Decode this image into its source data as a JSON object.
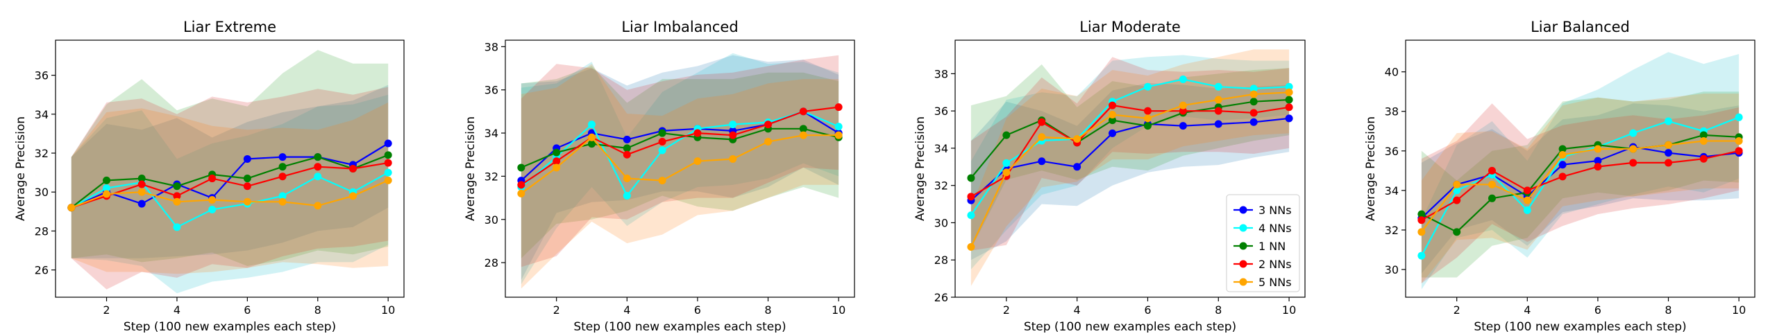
{
  "chart_data": [
    {
      "type": "line",
      "title": "Liar Extreme",
      "xlabel": "Step (100 new examples each step)",
      "ylabel": "Average Precision",
      "xlim": [
        0.55,
        10.45
      ],
      "ylim": [
        24.6,
        37.8
      ],
      "xticks": [
        2,
        4,
        6,
        8,
        10
      ],
      "yticks": [
        26,
        28,
        30,
        32,
        34,
        36
      ],
      "x": [
        1,
        2,
        3,
        4,
        5,
        6,
        7,
        8,
        9,
        10
      ],
      "series": [
        {
          "name": "3 NNs",
          "color": "#0000ff",
          "fill": "#1f77b4",
          "values": [
            29.2,
            30.0,
            29.4,
            30.4,
            29.7,
            31.7,
            31.8,
            31.8,
            31.4,
            32.5
          ],
          "lower": [
            26.6,
            26.6,
            26.6,
            26.7,
            26.8,
            27.0,
            27.4,
            28.0,
            28.2,
            29.2
          ],
          "upper": [
            31.8,
            33.5,
            33.2,
            33.8,
            32.8,
            33.6,
            34.1,
            34.4,
            34.7,
            35.5
          ]
        },
        {
          "name": "4 NNs",
          "color": "#00ffff",
          "fill": "#17becf",
          "values": [
            29.2,
            30.2,
            30.5,
            28.2,
            29.1,
            29.4,
            29.8,
            30.8,
            30.0,
            31.0
          ],
          "lower": [
            26.6,
            26.5,
            26.2,
            24.8,
            25.4,
            25.6,
            25.9,
            26.4,
            26.4,
            27.3
          ],
          "upper": [
            31.8,
            33.8,
            34.2,
            31.7,
            32.5,
            32.9,
            33.5,
            34.4,
            34.5,
            35.0
          ]
        },
        {
          "name": "1 NN",
          "color": "#008000",
          "fill": "#2ca02c",
          "values": [
            29.2,
            30.6,
            30.7,
            30.3,
            30.9,
            30.7,
            31.3,
            31.8,
            31.2,
            31.9
          ],
          "lower": [
            26.6,
            26.8,
            26.4,
            26.6,
            26.9,
            26.2,
            26.5,
            27.0,
            26.8,
            27.2
          ],
          "upper": [
            31.8,
            34.5,
            35.8,
            34.2,
            34.8,
            34.4,
            36.1,
            37.3,
            36.6,
            36.6
          ]
        },
        {
          "name": "2 NNs",
          "color": "#ff0000",
          "fill": "#d62728",
          "values": [
            29.2,
            29.8,
            30.4,
            29.8,
            30.7,
            30.3,
            30.8,
            31.3,
            31.2,
            31.5
          ],
          "lower": [
            26.6,
            25.0,
            25.9,
            25.6,
            26.3,
            26.1,
            26.7,
            27.1,
            27.2,
            27.5
          ],
          "upper": [
            31.8,
            34.6,
            34.8,
            34.0,
            34.9,
            34.6,
            34.9,
            35.3,
            35.0,
            35.4
          ]
        },
        {
          "name": "5 NNs",
          "color": "#ffa500",
          "fill": "#ff7f0e",
          "values": [
            29.2,
            29.9,
            30.0,
            29.5,
            29.6,
            29.5,
            29.5,
            29.3,
            29.8,
            30.6
          ],
          "lower": [
            26.6,
            25.9,
            25.9,
            25.8,
            25.9,
            26.1,
            26.4,
            26.3,
            26.1,
            26.2
          ],
          "upper": [
            31.8,
            34.1,
            34.3,
            33.9,
            33.4,
            33.2,
            33.3,
            33.2,
            33.7,
            34.6
          ]
        }
      ]
    },
    {
      "type": "line",
      "title": "Liar Imbalanced",
      "xlabel": "Step (100 new examples each step)",
      "ylabel": "Average Precision",
      "xlim": [
        0.55,
        10.45
      ],
      "ylim": [
        26.4,
        38.3
      ],
      "xticks": [
        2,
        4,
        6,
        8,
        10
      ],
      "yticks": [
        28,
        30,
        32,
        34,
        36,
        38
      ],
      "x": [
        1,
        2,
        3,
        4,
        5,
        6,
        7,
        8,
        9,
        10
      ],
      "series": [
        {
          "name": "3 NNs",
          "color": "#0000ff",
          "fill": "#1f77b4",
          "values": [
            31.8,
            33.3,
            34.0,
            33.7,
            34.1,
            34.2,
            34.1,
            34.4,
            35.0,
            34.0
          ],
          "lower": [
            27.2,
            30.3,
            30.8,
            30.9,
            31.3,
            31.3,
            31.0,
            31.5,
            32.4,
            31.6
          ],
          "upper": [
            36.3,
            36.4,
            37.0,
            36.2,
            36.8,
            37.1,
            37.6,
            37.3,
            37.4,
            36.7
          ]
        },
        {
          "name": "4 NNs",
          "color": "#00ffff",
          "fill": "#17becf",
          "values": [
            31.5,
            32.9,
            34.4,
            31.1,
            33.2,
            34.2,
            34.4,
            34.5,
            35.0,
            34.3
          ],
          "lower": [
            27.0,
            29.6,
            31.5,
            29.7,
            30.8,
            31.5,
            31.6,
            31.9,
            32.6,
            32.0
          ],
          "upper": [
            36.1,
            36.3,
            37.3,
            33.8,
            35.9,
            36.8,
            37.7,
            37.2,
            37.3,
            36.8
          ]
        },
        {
          "name": "1 NN",
          "color": "#008000",
          "fill": "#2ca02c",
          "values": [
            32.4,
            33.1,
            33.5,
            33.3,
            34.0,
            33.8,
            33.7,
            34.2,
            34.2,
            33.8
          ],
          "lower": [
            28.2,
            29.8,
            30.0,
            30.4,
            31.1,
            30.6,
            30.4,
            31.0,
            31.5,
            31.0
          ],
          "upper": [
            36.3,
            36.5,
            37.1,
            35.4,
            36.5,
            36.5,
            36.5,
            36.8,
            36.8,
            36.4
          ]
        },
        {
          "name": "2 NNs",
          "color": "#ff0000",
          "fill": "#d62728",
          "values": [
            31.6,
            32.7,
            33.8,
            33.0,
            33.6,
            34.0,
            33.9,
            34.4,
            35.0,
            35.2
          ],
          "lower": [
            27.8,
            28.3,
            30.1,
            30.0,
            30.8,
            31.0,
            31.0,
            31.7,
            32.4,
            32.3
          ],
          "upper": [
            35.6,
            37.2,
            37.0,
            36.0,
            36.4,
            36.7,
            36.8,
            37.1,
            37.4,
            37.6
          ]
        },
        {
          "name": "5 NNs",
          "color": "#ffa500",
          "fill": "#ff7f0e",
          "values": [
            31.2,
            32.4,
            33.8,
            31.9,
            31.8,
            32.7,
            32.8,
            33.6,
            33.9,
            33.9
          ],
          "lower": [
            26.8,
            28.4,
            29.9,
            28.9,
            29.3,
            30.2,
            30.4,
            31.0,
            31.6,
            31.6
          ],
          "upper": [
            35.8,
            36.1,
            37.2,
            34.9,
            34.8,
            35.6,
            35.8,
            36.3,
            36.5,
            36.5
          ]
        }
      ]
    },
    {
      "type": "line",
      "title": "Liar Moderate",
      "xlabel": "Step (100 new examples each step)",
      "ylabel": "Average Precision",
      "xlim": [
        0.55,
        10.45
      ],
      "ylim": [
        26.0,
        39.8
      ],
      "xticks": [
        2,
        4,
        6,
        8,
        10
      ],
      "yticks": [
        26,
        28,
        30,
        32,
        34,
        36,
        38
      ],
      "x": [
        1,
        2,
        3,
        4,
        5,
        6,
        7,
        8,
        9,
        10
      ],
      "series": [
        {
          "name": "3 NNs",
          "color": "#0000ff",
          "fill": "#1f77b4",
          "values": [
            31.2,
            32.9,
            33.3,
            33.0,
            34.8,
            35.3,
            35.2,
            35.3,
            35.4,
            35.6
          ],
          "lower": [
            28.0,
            29.0,
            31.0,
            30.9,
            32.0,
            32.7,
            33.0,
            33.1,
            33.5,
            33.8
          ],
          "upper": [
            34.4,
            36.5,
            36.0,
            35.2,
            37.1,
            37.5,
            37.4,
            37.2,
            37.3,
            37.4
          ]
        },
        {
          "name": "4 NNs",
          "color": "#00ffff",
          "fill": "#17becf",
          "values": [
            30.4,
            33.2,
            34.4,
            34.5,
            36.5,
            37.3,
            37.7,
            37.3,
            37.2,
            37.3
          ],
          "lower": [
            27.5,
            29.6,
            31.5,
            32.0,
            34.0,
            35.2,
            35.7,
            35.5,
            35.6,
            35.8
          ],
          "upper": [
            33.3,
            36.6,
            37.0,
            36.8,
            38.7,
            38.9,
            39.0,
            38.8,
            38.7,
            38.7
          ]
        },
        {
          "name": "1 NN",
          "color": "#008000",
          "fill": "#2ca02c",
          "values": [
            32.4,
            34.7,
            35.5,
            34.3,
            35.5,
            35.2,
            35.9,
            36.2,
            36.5,
            36.6
          ],
          "lower": [
            28.6,
            32.3,
            32.8,
            32.3,
            33.0,
            32.8,
            33.6,
            34.0,
            34.4,
            34.7
          ],
          "upper": [
            36.3,
            36.8,
            38.5,
            36.2,
            37.6,
            37.3,
            37.8,
            38.0,
            38.2,
            38.3
          ]
        },
        {
          "name": "2 NNs",
          "color": "#ff0000",
          "fill": "#d62728",
          "values": [
            31.4,
            32.5,
            35.4,
            34.3,
            36.3,
            36.0,
            36.0,
            36.0,
            35.9,
            36.2
          ],
          "lower": [
            28.5,
            28.8,
            32.4,
            32.0,
            33.8,
            33.7,
            33.8,
            33.8,
            33.7,
            34.0
          ],
          "upper": [
            34.4,
            35.7,
            37.8,
            36.4,
            38.9,
            38.2,
            38.1,
            38.2,
            38.1,
            38.3
          ]
        },
        {
          "name": "5 NNs",
          "color": "#ffa500",
          "fill": "#ff7f0e",
          "values": [
            28.7,
            32.7,
            34.6,
            34.5,
            35.8,
            35.6,
            36.3,
            36.6,
            36.9,
            37.0
          ],
          "lower": [
            26.6,
            29.8,
            31.9,
            32.2,
            33.4,
            33.4,
            34.1,
            34.4,
            34.7,
            34.8
          ],
          "upper": [
            30.8,
            35.6,
            37.2,
            36.8,
            38.2,
            37.9,
            38.5,
            38.9,
            39.3,
            39.3
          ]
        }
      ]
    },
    {
      "type": "line",
      "title": "Liar Balanced",
      "xlabel": "Step (100 new examples each step)",
      "ylabel": "Average Precision",
      "xlim": [
        0.55,
        10.45
      ],
      "ylim": [
        28.6,
        41.6
      ],
      "xticks": [
        2,
        4,
        6,
        8,
        10
      ],
      "yticks": [
        30,
        32,
        34,
        36,
        38,
        40
      ],
      "x": [
        1,
        2,
        3,
        4,
        5,
        6,
        7,
        8,
        9,
        10
      ],
      "series": [
        {
          "name": "3 NNs",
          "color": "#0000ff",
          "fill": "#1f77b4",
          "values": [
            32.6,
            34.3,
            34.8,
            33.7,
            35.3,
            35.5,
            36.2,
            35.9,
            35.7,
            35.9
          ],
          "lower": [
            29.8,
            32.0,
            32.5,
            31.2,
            32.9,
            33.2,
            33.6,
            33.5,
            33.5,
            33.6
          ],
          "upper": [
            35.4,
            36.4,
            37.1,
            36.0,
            37.6,
            37.8,
            38.4,
            38.3,
            38.0,
            38.3
          ]
        },
        {
          "name": "4 NNs",
          "color": "#00ffff",
          "fill": "#17becf",
          "values": [
            30.7,
            34.0,
            34.8,
            33.0,
            35.7,
            36.2,
            36.9,
            37.5,
            37.0,
            37.7
          ],
          "lower": [
            29.0,
            31.6,
            32.0,
            30.6,
            32.8,
            33.3,
            33.8,
            34.2,
            33.9,
            34.6
          ],
          "upper": [
            32.5,
            36.3,
            37.5,
            35.5,
            38.4,
            39.1,
            40.1,
            41.0,
            40.4,
            40.9
          ]
        },
        {
          "name": "1 NN",
          "color": "#008000",
          "fill": "#2ca02c",
          "values": [
            32.8,
            31.9,
            33.6,
            33.9,
            36.1,
            36.3,
            36.1,
            36.3,
            36.8,
            36.7
          ],
          "lower": [
            29.6,
            29.6,
            31.2,
            31.6,
            33.6,
            33.9,
            33.7,
            34.0,
            34.5,
            34.4
          ],
          "upper": [
            36.0,
            34.5,
            36.0,
            36.3,
            38.5,
            38.7,
            38.5,
            38.6,
            39.0,
            39.0
          ]
        },
        {
          "name": "2 NNs",
          "color": "#ff0000",
          "fill": "#d62728",
          "values": [
            32.5,
            33.5,
            35.0,
            34.0,
            34.7,
            35.2,
            35.4,
            35.4,
            35.6,
            36.0
          ],
          "lower": [
            29.3,
            30.6,
            32.3,
            31.4,
            32.2,
            32.8,
            33.1,
            33.3,
            33.6,
            34.0
          ],
          "upper": [
            35.6,
            36.5,
            38.4,
            36.6,
            37.3,
            37.6,
            37.8,
            37.6,
            37.8,
            38.2
          ]
        },
        {
          "name": "5 NNs",
          "color": "#ffa500",
          "fill": "#ff7f0e",
          "values": [
            31.9,
            34.3,
            34.3,
            33.5,
            35.8,
            36.1,
            36.1,
            36.3,
            36.5,
            36.5
          ],
          "lower": [
            29.3,
            31.5,
            31.6,
            31.0,
            33.2,
            33.5,
            33.7,
            33.9,
            34.1,
            34.1
          ],
          "upper": [
            34.5,
            36.9,
            37.0,
            36.1,
            38.3,
            38.7,
            38.5,
            38.7,
            38.9,
            38.9
          ]
        }
      ]
    }
  ],
  "legend": {
    "placement": "lower-right",
    "panel": 2,
    "entries": [
      "3 NNs",
      "4 NNs",
      "1 NN",
      "2 NNs",
      "5 NNs"
    ]
  }
}
